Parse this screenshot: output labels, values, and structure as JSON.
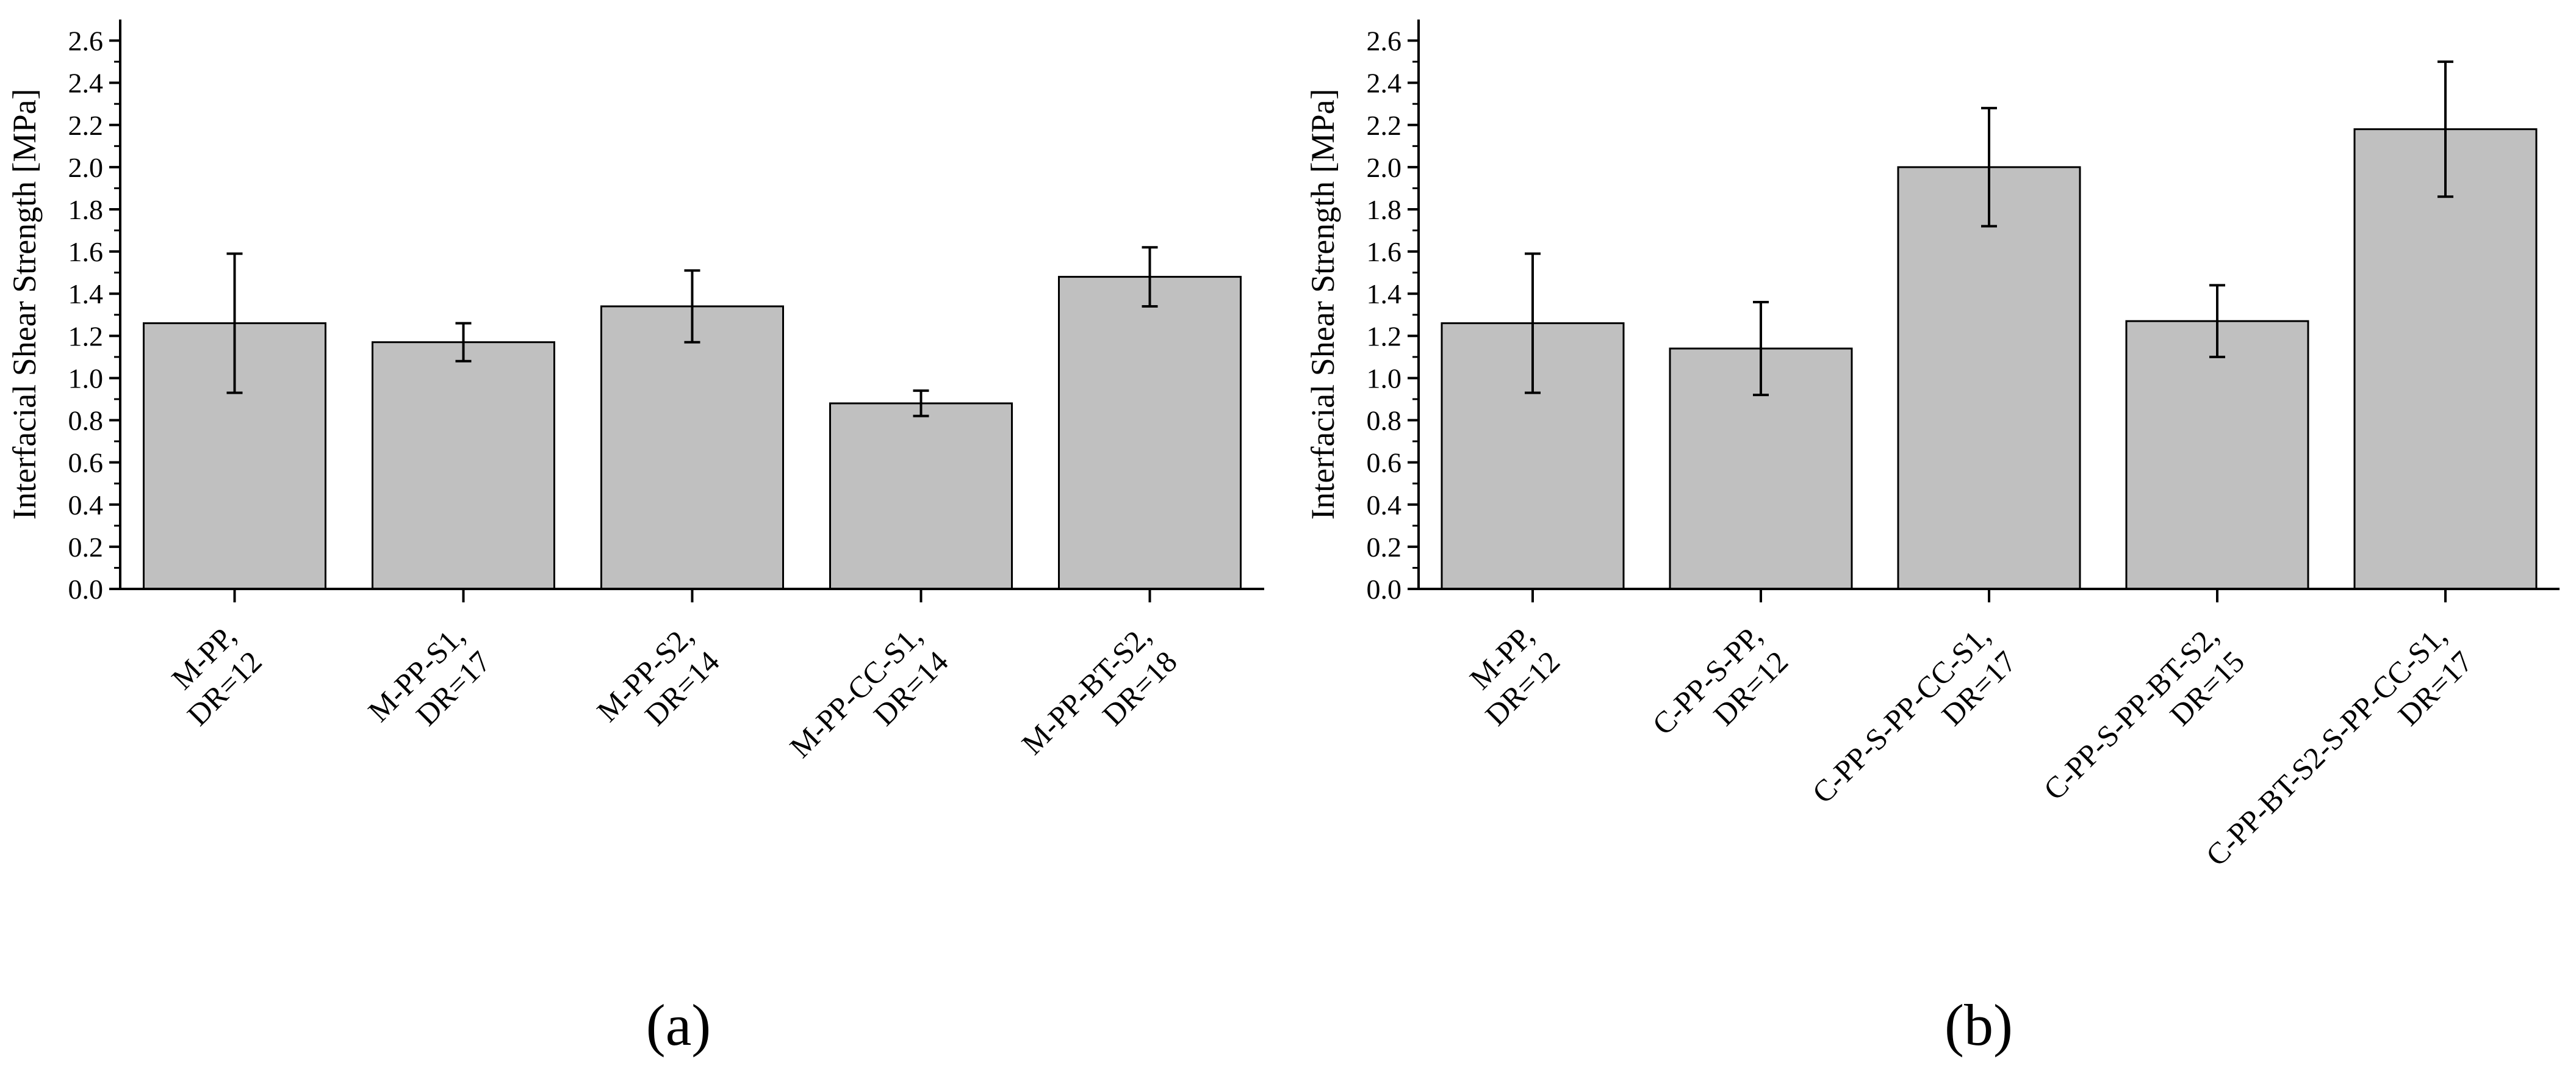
{
  "figure": {
    "colors": {
      "bar_fill": "#c0c0c0",
      "stroke": "#000000",
      "background": "#ffffff"
    }
  },
  "chart_data": [
    {
      "type": "bar",
      "panel_label": "(a)",
      "title": "",
      "xlabel": "",
      "ylabel": "Interfacial Shear Strength [MPa]",
      "ylim": [
        0,
        2.7
      ],
      "yticks": [
        "0.0",
        "0.2",
        "0.4",
        "0.6",
        "0.8",
        "1.0",
        "1.2",
        "1.4",
        "1.6",
        "1.8",
        "2.0",
        "2.2",
        "2.4",
        "2.6"
      ],
      "categories": [
        [
          "M-PP,",
          "DR=12"
        ],
        [
          "M-PP-S1,",
          "DR=17"
        ],
        [
          "M-PP-S2,",
          "DR=14"
        ],
        [
          "M-PP-CC-S1,",
          "DR=14"
        ],
        [
          "M-PP-BT-S2,",
          "DR=18"
        ]
      ],
      "values": [
        1.26,
        1.17,
        1.34,
        0.88,
        1.48
      ],
      "errors": [
        0.33,
        0.09,
        0.17,
        0.06,
        0.14
      ],
      "grid": false
    },
    {
      "type": "bar",
      "panel_label": "(b)",
      "title": "",
      "xlabel": "",
      "ylabel": "Interfacial Shear Strength [MPa]",
      "ylim": [
        0,
        2.7
      ],
      "yticks": [
        "0.0",
        "0.2",
        "0.4",
        "0.6",
        "0.8",
        "1.0",
        "1.2",
        "1.4",
        "1.6",
        "1.8",
        "2.0",
        "2.2",
        "2.4",
        "2.6"
      ],
      "categories": [
        [
          "M-PP,",
          "DR=12"
        ],
        [
          "C-PP-S-PP,",
          "DR=12"
        ],
        [
          "C-PP-S-PP-CC-S1,",
          "DR=17"
        ],
        [
          "C-PP-S-PP-BT-S2,",
          "DR=15"
        ],
        [
          "C-PP-BT-S2-S-PP-CC-S1,",
          "DR=17"
        ]
      ],
      "values": [
        1.26,
        1.14,
        2.0,
        1.27,
        2.18
      ],
      "errors": [
        0.33,
        0.22,
        0.28,
        0.17,
        0.32
      ],
      "grid": false
    }
  ]
}
